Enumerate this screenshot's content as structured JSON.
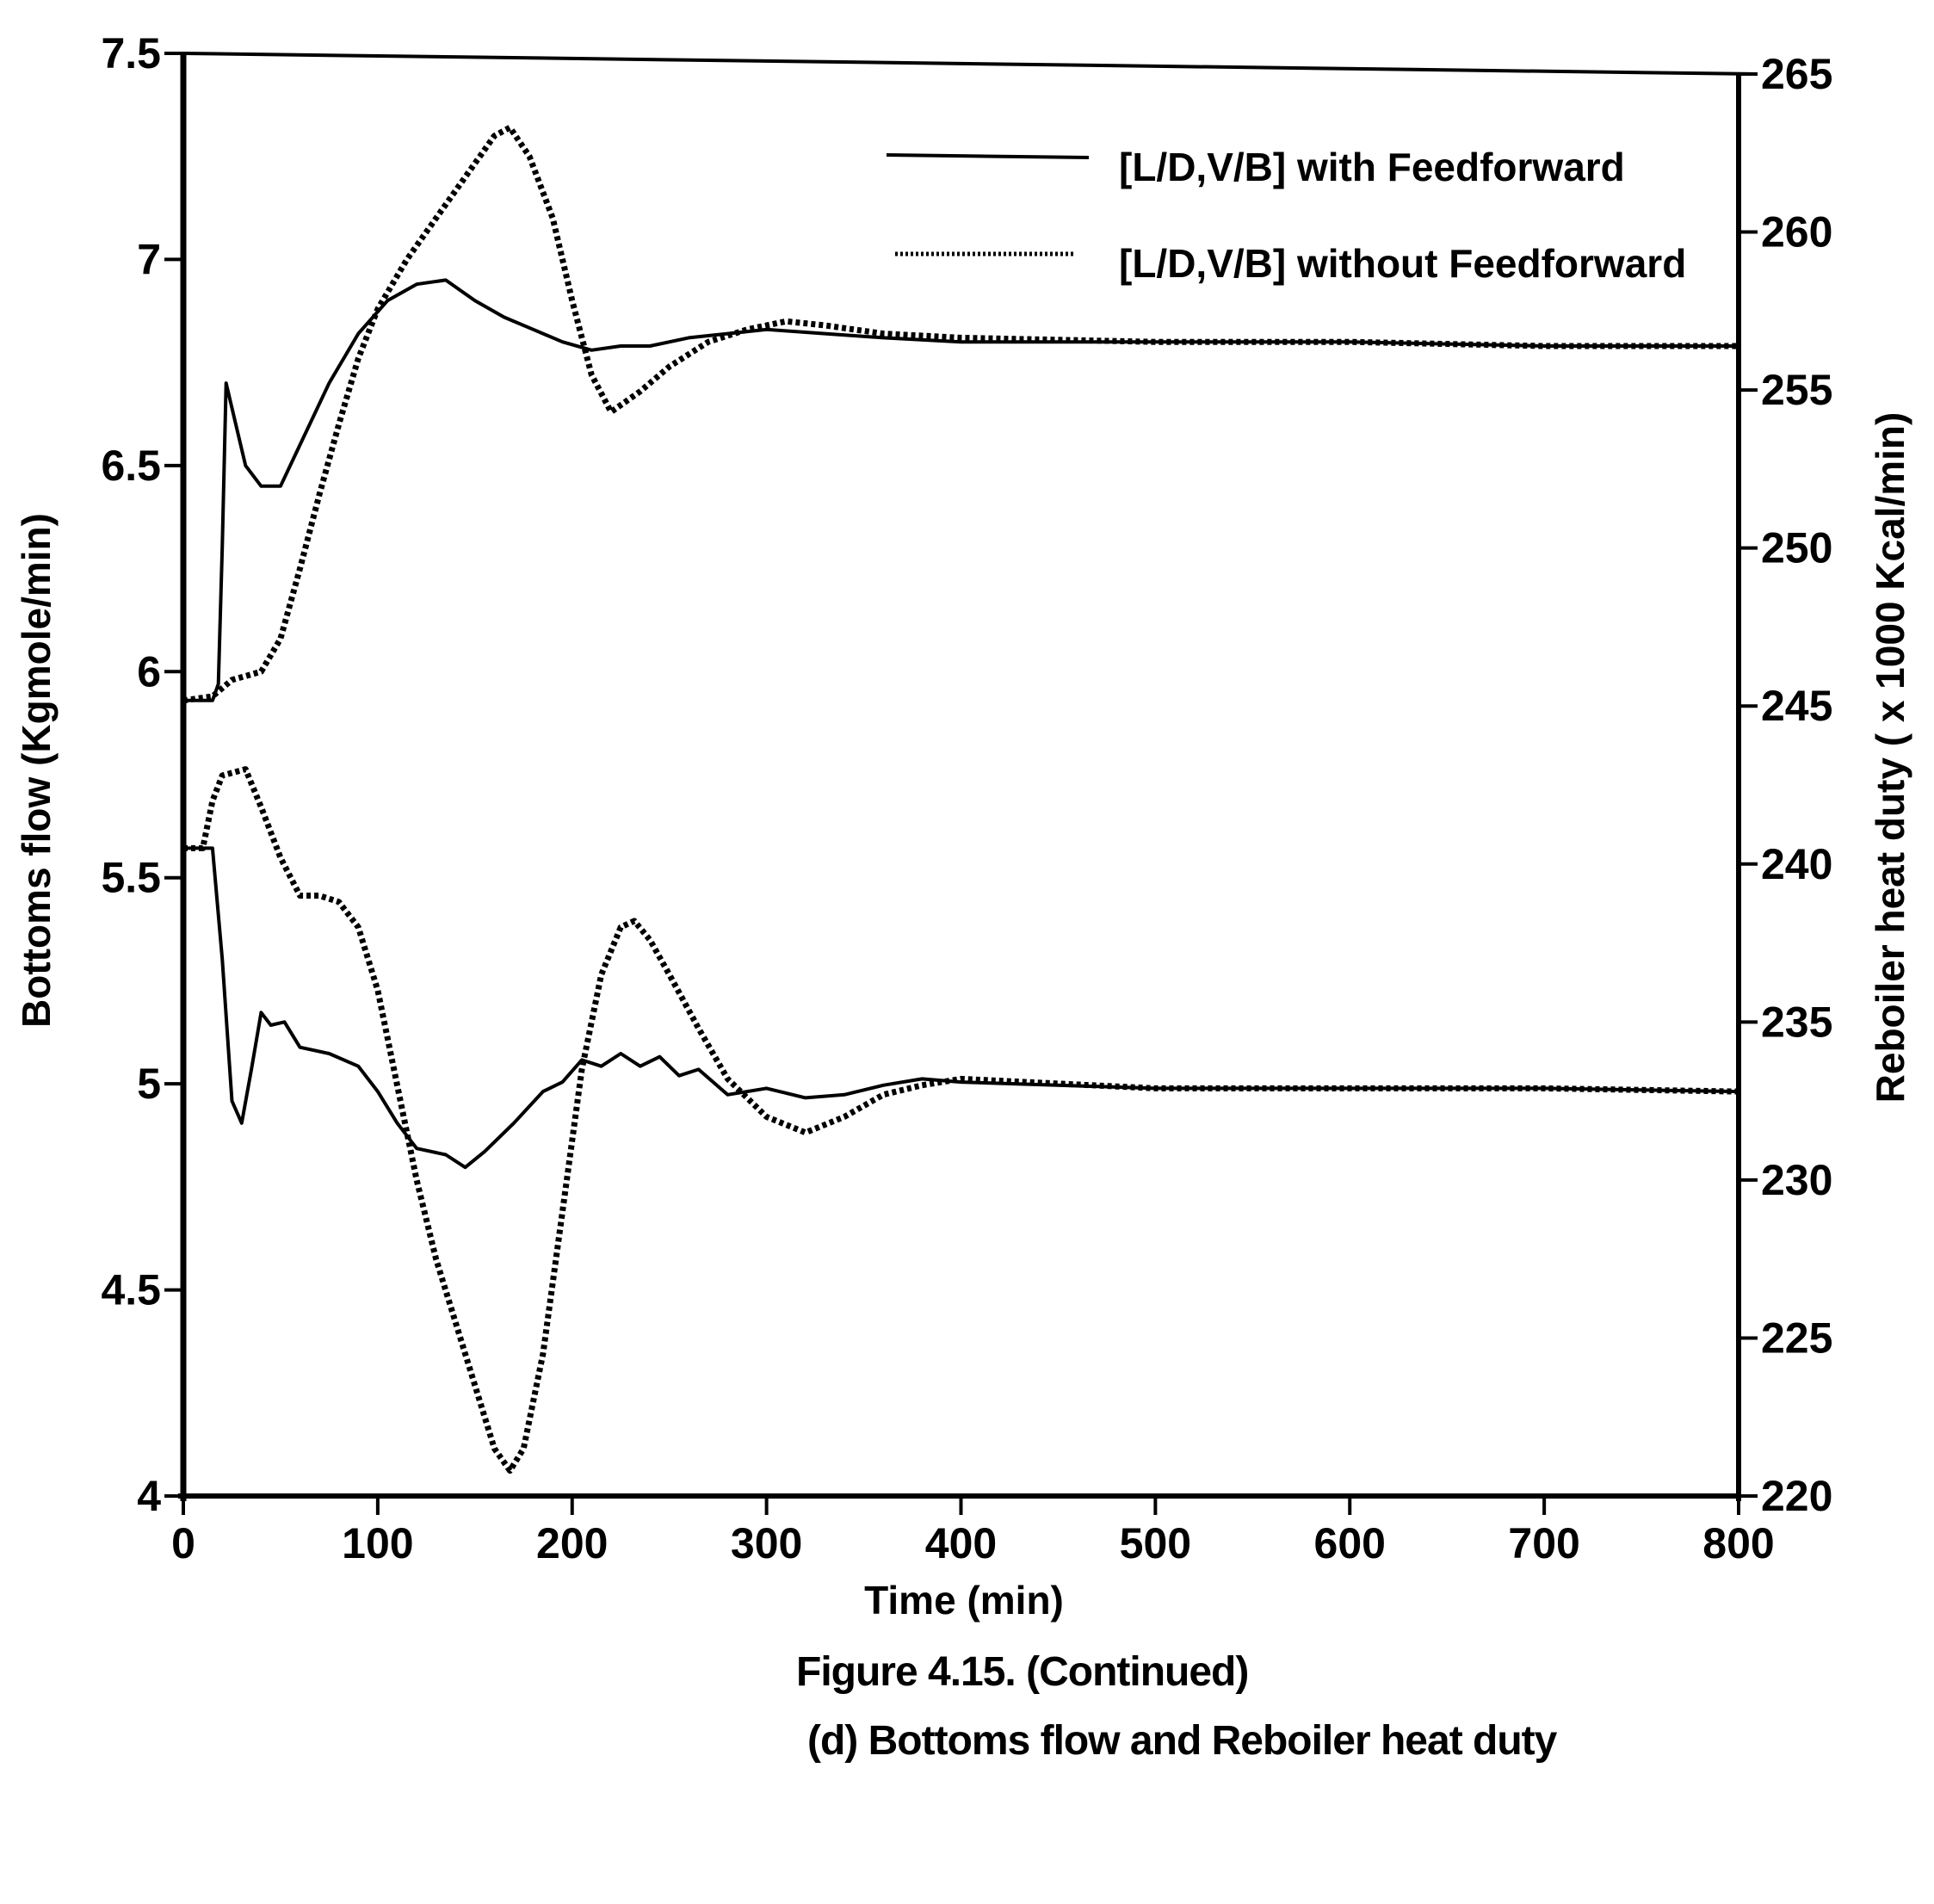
{
  "figure": {
    "caption_line1": "Figure 4.15. (Continued)",
    "caption_line2": "(d) Bottoms flow and Reboiler heat duty"
  },
  "chart_data": {
    "type": "line",
    "title": "",
    "xlabel": "Time (min)",
    "ylabel": "Bottoms flow  (Kgmole/min)",
    "ylabel_right": "Reboiler heat duty ( x 1000 Kcal/min)",
    "xlim": [
      0,
      800
    ],
    "ylim": [
      4,
      7.5
    ],
    "ylim_right": [
      220,
      265
    ],
    "x_ticks": [
      0,
      100,
      200,
      300,
      400,
      500,
      600,
      700,
      800
    ],
    "y_ticks": [
      {
        "value": 4,
        "label": "4"
      },
      {
        "value": 4.5,
        "label": "4.5"
      },
      {
        "value": 5,
        "label": "5"
      },
      {
        "value": 5.5,
        "label": "5.5"
      },
      {
        "value": 6,
        "label": "6"
      },
      {
        "value": 6.5,
        "label": "6.5"
      },
      {
        "value": 7,
        "label": "7"
      },
      {
        "value": 7.5,
        "label": "7.5"
      }
    ],
    "y_ticks_right": [
      220,
      225,
      230,
      235,
      240,
      245,
      250,
      255,
      260,
      265
    ],
    "grid": false,
    "legend_position": "upper right (inside)",
    "legend": [
      {
        "label": "[L/D,V/B] with Feedforward",
        "style": "solid"
      },
      {
        "label": "[L/D,V/B] without Feedforward",
        "style": "dotted"
      }
    ],
    "series": [
      {
        "name": "Bottoms flow - [L/D,V/B] with Feedforward",
        "axis": "left",
        "style": "solid",
        "x": [
          0,
          15,
          18,
          20,
          22,
          26,
          32,
          40,
          50,
          60,
          75,
          90,
          105,
          120,
          135,
          150,
          165,
          180,
          195,
          210,
          225,
          240,
          260,
          280,
          300,
          330,
          360,
          400,
          500,
          600,
          700,
          800
        ],
        "y": [
          5.93,
          5.93,
          5.97,
          6.3,
          6.7,
          6.62,
          6.5,
          6.45,
          6.45,
          6.55,
          6.7,
          6.82,
          6.9,
          6.94,
          6.95,
          6.9,
          6.86,
          6.83,
          6.8,
          6.78,
          6.79,
          6.79,
          6.81,
          6.82,
          6.83,
          6.82,
          6.81,
          6.8,
          6.8,
          6.8,
          6.79,
          6.79
        ]
      },
      {
        "name": "Bottoms flow - [L/D,V/B] without Feedforward",
        "axis": "left",
        "style": "dotted",
        "x": [
          0,
          15,
          25,
          40,
          50,
          60,
          70,
          80,
          90,
          100,
          115,
          130,
          145,
          160,
          168,
          178,
          190,
          200,
          210,
          220,
          235,
          250,
          270,
          290,
          310,
          330,
          360,
          400,
          500,
          600,
          700,
          800
        ],
        "y": [
          5.93,
          5.94,
          5.98,
          6.0,
          6.08,
          6.25,
          6.43,
          6.6,
          6.76,
          6.88,
          7.0,
          7.1,
          7.2,
          7.3,
          7.32,
          7.25,
          7.1,
          6.9,
          6.72,
          6.63,
          6.68,
          6.74,
          6.8,
          6.83,
          6.85,
          6.84,
          6.82,
          6.81,
          6.8,
          6.8,
          6.79,
          6.79
        ]
      },
      {
        "name": "Reboiler heat duty - [L/D,V/B] with Feedforward",
        "axis": "right",
        "style": "solid",
        "x": [
          0,
          15,
          20,
          25,
          30,
          35,
          40,
          45,
          52,
          60,
          75,
          90,
          100,
          110,
          120,
          135,
          145,
          155,
          170,
          185,
          195,
          205,
          215,
          225,
          235,
          245,
          255,
          265,
          280,
          300,
          320,
          340,
          360,
          380,
          400,
          500,
          600,
          700,
          800
        ],
        "y": [
          240.5,
          240.5,
          237,
          232.5,
          231.8,
          233.5,
          235.3,
          234.9,
          235.0,
          234.2,
          234.0,
          233.6,
          232.8,
          231.8,
          231.0,
          230.8,
          230.4,
          230.9,
          231.8,
          232.8,
          233.1,
          233.8,
          233.6,
          234.0,
          233.6,
          233.9,
          233.3,
          233.5,
          232.7,
          232.9,
          232.6,
          232.7,
          233.0,
          233.2,
          233.1,
          232.9,
          232.9,
          232.9,
          232.8
        ]
      },
      {
        "name": "Reboiler heat duty - [L/D,V/B] without Feedforward",
        "axis": "right",
        "style": "dotted",
        "x": [
          0,
          10,
          15,
          20,
          32,
          40,
          50,
          60,
          70,
          80,
          90,
          100,
          110,
          120,
          130,
          140,
          150,
          160,
          168,
          175,
          185,
          195,
          205,
          215,
          225,
          232,
          240,
          250,
          265,
          280,
          300,
          320,
          340,
          360,
          380,
          400,
          500,
          600,
          700,
          800
        ],
        "y": [
          240.5,
          240.5,
          242.0,
          242.8,
          243.0,
          241.8,
          240.2,
          239.0,
          239.0,
          238.8,
          238.0,
          236.0,
          233.0,
          230.0,
          227.5,
          225.5,
          223.5,
          221.5,
          220.8,
          221.5,
          224.5,
          229.0,
          233.5,
          236.5,
          238.0,
          238.2,
          237.6,
          236.5,
          234.8,
          233.2,
          232.0,
          231.5,
          232.0,
          232.7,
          233.0,
          233.2,
          232.9,
          232.9,
          232.9,
          232.8
        ]
      }
    ]
  }
}
